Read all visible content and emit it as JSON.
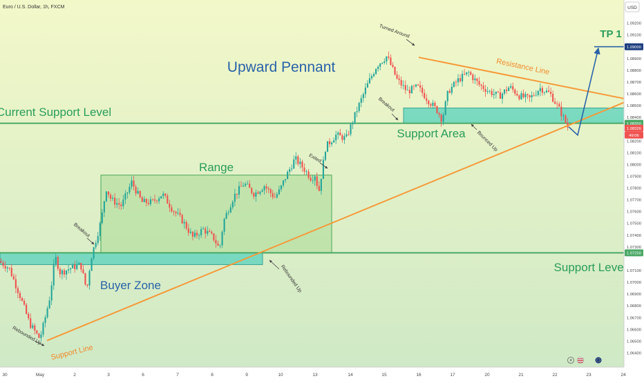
{
  "header": {
    "symbol_title": "Euro / U.S. Dollar, 1h, FXCM",
    "currency_button": "USD"
  },
  "colors": {
    "bg_top": "#f3f8c9",
    "bg_bottom": "#cfe9c6",
    "bull": "#26a69a",
    "bear": "#ef5350",
    "zone_fill": "#5fd3be",
    "zone_stroke": "#3aa392",
    "range_fill": "#a9db96",
    "range_stroke": "#4aa65a",
    "support_line": "#49a865",
    "trendline": "#f59a3a",
    "annotation_blue": "#2962a8",
    "annotation_green": "#2a9d5a"
  },
  "chart_data": {
    "type": "candlestick",
    "title": "Upward Pennant",
    "x_ticks": [
      "30",
      "May",
      "2",
      "3",
      "6",
      "7",
      "8",
      "9",
      "10",
      "13",
      "14",
      "15",
      "16",
      "17",
      "20",
      "21",
      "22",
      "23",
      "24"
    ],
    "y_ticks": [
      "1.09200",
      "1.09100",
      "1.08900",
      "1.08800",
      "1.08700",
      "1.08600",
      "1.08500",
      "1.08400",
      "1.08200",
      "1.08100",
      "1.08000",
      "1.07900",
      "1.07800",
      "1.07700",
      "1.07600",
      "1.07500",
      "1.07400",
      "1.07300",
      "1.07100",
      "1.07000",
      "1.06900",
      "1.06800",
      "1.06700",
      "1.06600",
      "1.06500",
      "1.06400"
    ],
    "ylim": [
      1.0635,
      1.0935
    ],
    "price_labels": [
      {
        "label": "1.09000",
        "value": 1.09
      },
      {
        "label": "1.08350",
        "value": 1.0835
      },
      {
        "label": "1.08326",
        "value": 1.08326
      },
      {
        "label": "49:06",
        "value": null
      },
      {
        "label": "1.07250",
        "value": 1.0725
      }
    ],
    "price_path": [
      [
        0,
        1.0718
      ],
      [
        1,
        1.0712
      ],
      [
        2,
        1.069
      ],
      [
        3,
        1.0665
      ],
      [
        4,
        1.0652
      ],
      [
        4.4,
        1.0665
      ],
      [
        5,
        1.0688
      ],
      [
        5.5,
        1.0722
      ],
      [
        6,
        1.0708
      ],
      [
        7,
        1.0712
      ],
      [
        8,
        1.0715
      ],
      [
        8.6,
        1.0693
      ],
      [
        9,
        1.072
      ],
      [
        10,
        1.0752
      ],
      [
        10.5,
        1.078
      ],
      [
        11,
        1.077
      ],
      [
        12,
        1.0765
      ],
      [
        13,
        1.0785
      ],
      [
        14,
        1.0768
      ],
      [
        15,
        1.0768
      ],
      [
        16,
        1.0775
      ],
      [
        17,
        1.0762
      ],
      [
        18,
        1.0752
      ],
      [
        19,
        1.0738
      ],
      [
        20,
        1.0745
      ],
      [
        21,
        1.0738
      ],
      [
        21.6,
        1.0728
      ],
      [
        22,
        1.0752
      ],
      [
        23,
        1.0773
      ],
      [
        24,
        1.0784
      ],
      [
        25,
        1.0775
      ],
      [
        26,
        1.0782
      ],
      [
        27,
        1.0772
      ],
      [
        27.5,
        1.0778
      ],
      [
        28,
        1.0788
      ],
      [
        29,
        1.0805
      ],
      [
        30,
        1.0795
      ],
      [
        30.6,
        1.0788
      ],
      [
        31,
        1.0792
      ],
      [
        31.3,
        1.0775
      ],
      [
        32,
        1.0815
      ],
      [
        33,
        1.0825
      ],
      [
        34,
        1.0822
      ],
      [
        35,
        1.0845
      ],
      [
        36,
        1.0866
      ],
      [
        37,
        1.0884
      ],
      [
        38,
        1.0892
      ],
      [
        39,
        1.0872
      ],
      [
        40,
        1.0862
      ],
      [
        41,
        1.0866
      ],
      [
        42,
        1.0855
      ],
      [
        43,
        1.0845
      ],
      [
        43.4,
        1.0838
      ],
      [
        44,
        1.0862
      ],
      [
        45,
        1.0872
      ],
      [
        46,
        1.0878
      ],
      [
        47,
        1.0868
      ],
      [
        48,
        1.0862
      ],
      [
        49,
        1.0858
      ],
      [
        50,
        1.0866
      ],
      [
        51,
        1.0858
      ],
      [
        52,
        1.0856
      ],
      [
        53,
        1.0865
      ],
      [
        54,
        1.086
      ],
      [
        55,
        1.0845
      ],
      [
        55.7,
        1.0832
      ]
    ],
    "lines": [
      {
        "name": "Current Support Level",
        "value": 1.0835
      },
      {
        "name": "Support Level",
        "value": 1.0725
      }
    ],
    "zones": [
      {
        "name": "Buyer Zone",
        "x_range": [
          "30",
          "9"
        ],
        "y_range": [
          1.0715,
          1.0725
        ]
      },
      {
        "name": "Range",
        "x_range": [
          "3",
          "13"
        ],
        "y_range": [
          1.0725,
          1.0791
        ]
      },
      {
        "name": "Support Area",
        "x_range": [
          "15",
          "24"
        ],
        "y_range": [
          1.0835,
          1.0848
        ]
      }
    ],
    "trendlines": [
      {
        "name": "Support Line",
        "points": [
          [
            "May",
            1.06505
          ],
          [
            "23",
            1.0848
          ]
        ]
      },
      {
        "name": "Resistance Line",
        "points": [
          [
            "16",
            1.0891
          ],
          [
            "24",
            1.0856
          ]
        ]
      }
    ],
    "annotations": {
      "upward_pennant": "Upward Pennant",
      "range": "Range",
      "buyer_zone": "Buyer Zone",
      "support_area": "Support Area",
      "support_level": "Support Level",
      "current_support_level": "Current Support Level",
      "support_line": "Support Line",
      "resistance_line": "Resistance Line",
      "tp1": "TP 1",
      "rebounded_up_1": "Rebounded Up",
      "rebounded_up_2": "Rebounded Up",
      "breakout_1": "Breakout",
      "breakout_2": "Breakout",
      "exited": "Exited",
      "turned_around": "Turned Around",
      "bounced_up": "Bounced Up"
    },
    "projection_target": 1.09
  }
}
